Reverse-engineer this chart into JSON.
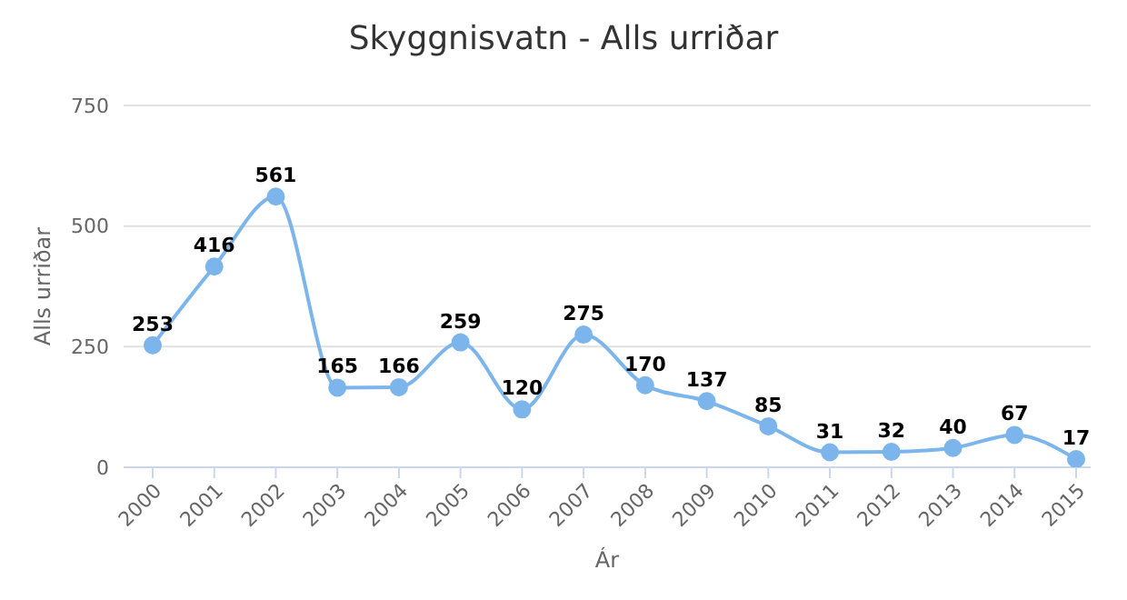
{
  "chart_data": {
    "type": "line",
    "title": "Skyggnisvatn - Alls urriðar",
    "xlabel": "Ár",
    "ylabel": "Alls urriðar",
    "categories": [
      "2000",
      "2001",
      "2002",
      "2003",
      "2004",
      "2005",
      "2006",
      "2007",
      "2008",
      "2009",
      "2010",
      "2011",
      "2012",
      "2013",
      "2014",
      "2015"
    ],
    "values": [
      253,
      416,
      561,
      165,
      166,
      259,
      120,
      275,
      170,
      137,
      85,
      31,
      32,
      40,
      67,
      17
    ],
    "color": "#7cb5ec",
    "ylim": [
      0,
      750
    ],
    "yticks": [
      0,
      250,
      500,
      750
    ],
    "grid": "y",
    "marker": "circle",
    "line_style": "solid",
    "data_labels": true
  }
}
